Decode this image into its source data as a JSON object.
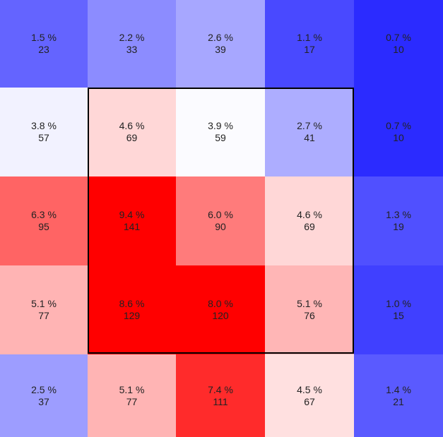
{
  "chart_data": {
    "type": "heatmap",
    "title": "",
    "xlabel": "",
    "ylabel": "",
    "rows": 5,
    "cols": 5,
    "percent_suffix": " %",
    "cells": [
      [
        {
          "pct": "1.5",
          "count": 23,
          "color": "#6464ff"
        },
        {
          "pct": "2.2",
          "count": 33,
          "color": "#8c8cff"
        },
        {
          "pct": "2.6",
          "count": 39,
          "color": "#a7a7ff"
        },
        {
          "pct": "1.1",
          "count": 17,
          "color": "#4949ff"
        },
        {
          "pct": "0.7",
          "count": 10,
          "color": "#2b2bff"
        }
      ],
      [
        {
          "pct": "3.8",
          "count": 57,
          "color": "#f2f2ff"
        },
        {
          "pct": "4.6",
          "count": 69,
          "color": "#ffd7d7"
        },
        {
          "pct": "3.9",
          "count": 59,
          "color": "#fbfbff"
        },
        {
          "pct": "2.7",
          "count": 41,
          "color": "#adadff"
        },
        {
          "pct": "0.7",
          "count": 10,
          "color": "#2b2bff"
        }
      ],
      [
        {
          "pct": "6.3",
          "count": 95,
          "color": "#ff6464"
        },
        {
          "pct": "9.4",
          "count": 141,
          "color": "#ff0000"
        },
        {
          "pct": "6.0",
          "count": 90,
          "color": "#ff7b7b"
        },
        {
          "pct": "4.6",
          "count": 69,
          "color": "#ffd7d7"
        },
        {
          "pct": "1.3",
          "count": 19,
          "color": "#5050ff"
        }
      ],
      [
        {
          "pct": "5.1",
          "count": 77,
          "color": "#ffb4b4"
        },
        {
          "pct": "8.6",
          "count": 129,
          "color": "#ff0000"
        },
        {
          "pct": "8.0",
          "count": 120,
          "color": "#ff0000"
        },
        {
          "pct": "5.1",
          "count": 76,
          "color": "#ffb6b6"
        },
        {
          "pct": "1.0",
          "count": 15,
          "color": "#4040ff"
        }
      ],
      [
        {
          "pct": "2.5",
          "count": 37,
          "color": "#9d9dff"
        },
        {
          "pct": "5.1",
          "count": 77,
          "color": "#ffb4b4"
        },
        {
          "pct": "7.4",
          "count": 111,
          "color": "#ff2b2b"
        },
        {
          "pct": "4.5",
          "count": 67,
          "color": "#ffe0e0"
        },
        {
          "pct": "1.4",
          "count": 21,
          "color": "#5a5aff"
        }
      ]
    ],
    "highlight_region": {
      "row_start": 1,
      "row_end": 3,
      "col_start": 1,
      "col_end": 3,
      "color": "#000000"
    },
    "grid": false,
    "legend": "none"
  }
}
